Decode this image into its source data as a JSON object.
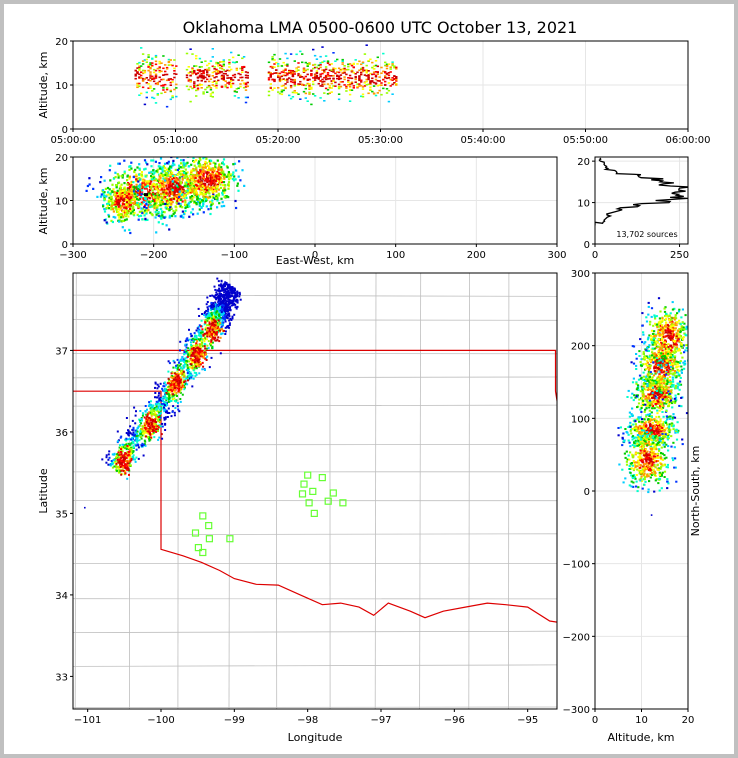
{
  "figure_title": "Oklahoma LMA 0500-0600 UTC October 13, 2021",
  "source_count_label": "13,702 sources",
  "colors": {
    "density": [
      "#0000cc",
      "#0033ff",
      "#00ccff",
      "#00ffcc",
      "#00cc00",
      "#99ff00",
      "#ffff00",
      "#ff9900",
      "#ff0000",
      "#cc0000",
      "#000000",
      "#ffffff"
    ],
    "state_border": "#dd0000",
    "county_lines": "#bfbfbf",
    "stations": "#66ff33"
  },
  "chart_data": [
    {
      "id": "time-height",
      "type": "scatter",
      "title": "",
      "xlabel": "",
      "ylabel": "Altitude, km",
      "x_ticks": [
        "05:00:00",
        "05:10:00",
        "05:20:00",
        "05:30:00",
        "05:40:00",
        "05:50:00",
        "06:00:00"
      ],
      "xlim_minutes": [
        0,
        60
      ],
      "y_ticks": [
        "0",
        "10",
        "20"
      ],
      "ylim": [
        0,
        20
      ],
      "activity_windows_minutes": [
        [
          6,
          10
        ],
        [
          11,
          17
        ],
        [
          19,
          31.5
        ]
      ],
      "altitude_range_km": [
        4,
        20
      ],
      "peak_altitude_km": 12
    },
    {
      "id": "ew-altitude",
      "type": "scatter",
      "xlabel": "East-West, km",
      "ylabel": "Altitude, km",
      "x_ticks": [
        "−300",
        "−200",
        "−100",
        "0",
        "100",
        "200",
        "300"
      ],
      "xlim": [
        -300,
        300
      ],
      "y_ticks": [
        "0",
        "10",
        "20"
      ],
      "ylim": [
        0,
        20
      ],
      "clusters": [
        {
          "x": -215,
          "alt": 12,
          "x_spread": 25,
          "alt_spread": 3.2
        },
        {
          "x": -175,
          "alt": 13,
          "x_spread": 20,
          "alt_spread": 3.0
        },
        {
          "x": -135,
          "alt": 15,
          "x_spread": 18,
          "alt_spread": 3.0
        },
        {
          "x": -240,
          "alt": 10,
          "x_spread": 12,
          "alt_spread": 2.5
        }
      ]
    },
    {
      "id": "altitude-histogram",
      "type": "line",
      "xlabel": "",
      "ylabel": "",
      "x_ticks": [
        "0",
        "250"
      ],
      "xlim": [
        0,
        275
      ],
      "y_ticks": [
        "0",
        "10",
        "20"
      ],
      "ylim": [
        0,
        21
      ],
      "annotation": "13,702 sources",
      "profile": [
        [
          0,
          4.5
        ],
        [
          25,
          5
        ],
        [
          40,
          6.5
        ],
        [
          70,
          8
        ],
        [
          130,
          9
        ],
        [
          200,
          10
        ],
        [
          245,
          11
        ],
        [
          265,
          12
        ],
        [
          255,
          13
        ],
        [
          215,
          14
        ],
        [
          180,
          15
        ],
        [
          120,
          16
        ],
        [
          60,
          17
        ],
        [
          35,
          18
        ],
        [
          25,
          19
        ],
        [
          15,
          20
        ]
      ]
    },
    {
      "id": "plan-view",
      "type": "scatter",
      "xlabel": "Longitude",
      "ylabel": "Latitude",
      "x_ticks": [
        "−101",
        "−100",
        "−99",
        "−98",
        "−97",
        "−96",
        "−95"
      ],
      "xlim": [
        -101.2,
        -94.6
      ],
      "y_ticks": [
        "33",
        "34",
        "35",
        "36",
        "37"
      ],
      "ylim": [
        32.6,
        37.95
      ],
      "source_band": [
        {
          "lon": -100.65,
          "lat": 35.55
        },
        {
          "lon": -99.95,
          "lat": 36.4
        },
        {
          "lon": -99.3,
          "lat": 37.35
        },
        {
          "lon": -99.05,
          "lat": 37.8
        }
      ],
      "cores": [
        {
          "lon": -100.5,
          "lat": 35.65
        },
        {
          "lon": -100.15,
          "lat": 36.1
        },
        {
          "lon": -99.8,
          "lat": 36.6
        },
        {
          "lon": -99.5,
          "lat": 36.95
        },
        {
          "lon": -99.3,
          "lat": 37.25
        }
      ],
      "stations": [
        {
          "lon": -98.0,
          "lat": 35.47
        },
        {
          "lon": -98.05,
          "lat": 35.36
        },
        {
          "lon": -98.07,
          "lat": 35.24
        },
        {
          "lon": -97.8,
          "lat": 35.44
        },
        {
          "lon": -97.93,
          "lat": 35.27
        },
        {
          "lon": -97.98,
          "lat": 35.13
        },
        {
          "lon": -97.91,
          "lat": 35.0
        },
        {
          "lon": -97.72,
          "lat": 35.15
        },
        {
          "lon": -97.65,
          "lat": 35.25
        },
        {
          "lon": -97.52,
          "lat": 35.13
        },
        {
          "lon": -99.43,
          "lat": 34.97
        },
        {
          "lon": -99.35,
          "lat": 34.85
        },
        {
          "lon": -99.53,
          "lat": 34.76
        },
        {
          "lon": -99.34,
          "lat": 34.69
        },
        {
          "lon": -99.06,
          "lat": 34.69
        },
        {
          "lon": -99.49,
          "lat": 34.58
        },
        {
          "lon": -99.43,
          "lat": 34.52
        }
      ],
      "ok_border": [
        [
          -103,
          37
        ],
        [
          -94.62,
          37
        ],
        [
          -94.62,
          36.5
        ],
        [
          -94.43,
          35.4
        ],
        [
          -94.48,
          33.65
        ],
        [
          -94.7,
          33.68
        ],
        [
          -95.0,
          33.85
        ],
        [
          -95.3,
          33.88
        ],
        [
          -95.55,
          33.9
        ],
        [
          -95.85,
          33.85
        ],
        [
          -96.15,
          33.8
        ],
        [
          -96.4,
          33.72
        ],
        [
          -96.6,
          33.8
        ],
        [
          -96.9,
          33.9
        ],
        [
          -97.1,
          33.75
        ],
        [
          -97.3,
          33.85
        ],
        [
          -97.55,
          33.9
        ],
        [
          -97.8,
          33.88
        ],
        [
          -98.1,
          34.0
        ],
        [
          -98.4,
          34.12
        ],
        [
          -98.7,
          34.13
        ],
        [
          -99.0,
          34.2
        ],
        [
          -99.2,
          34.3
        ],
        [
          -99.45,
          34.4
        ],
        [
          -99.7,
          34.48
        ],
        [
          -100.0,
          34.56
        ],
        [
          -100.0,
          36.5
        ],
        [
          -103,
          36.5
        ]
      ]
    },
    {
      "id": "altitude-ns",
      "type": "scatter",
      "xlabel": "Altitude, km",
      "ylabel": "North-South, km",
      "x_ticks": [
        "0",
        "10",
        "20"
      ],
      "xlim": [
        0,
        20
      ],
      "y_ticks": [
        "−300",
        "−200",
        "−100",
        "0",
        "100",
        "200",
        "300"
      ],
      "ylim": [
        -300,
        300
      ],
      "clusters": [
        {
          "alt": 12,
          "y": 85,
          "alt_spread": 2.6,
          "y_spread": 12
        },
        {
          "alt": 11,
          "y": 45,
          "alt_spread": 2.4,
          "y_spread": 18
        },
        {
          "alt": 13,
          "y": 135,
          "alt_spread": 2.4,
          "y_spread": 15
        },
        {
          "alt": 14,
          "y": 175,
          "alt_spread": 2.4,
          "y_spread": 18
        },
        {
          "alt": 15.5,
          "y": 215,
          "alt_spread": 2.2,
          "y_spread": 20
        }
      ]
    }
  ]
}
